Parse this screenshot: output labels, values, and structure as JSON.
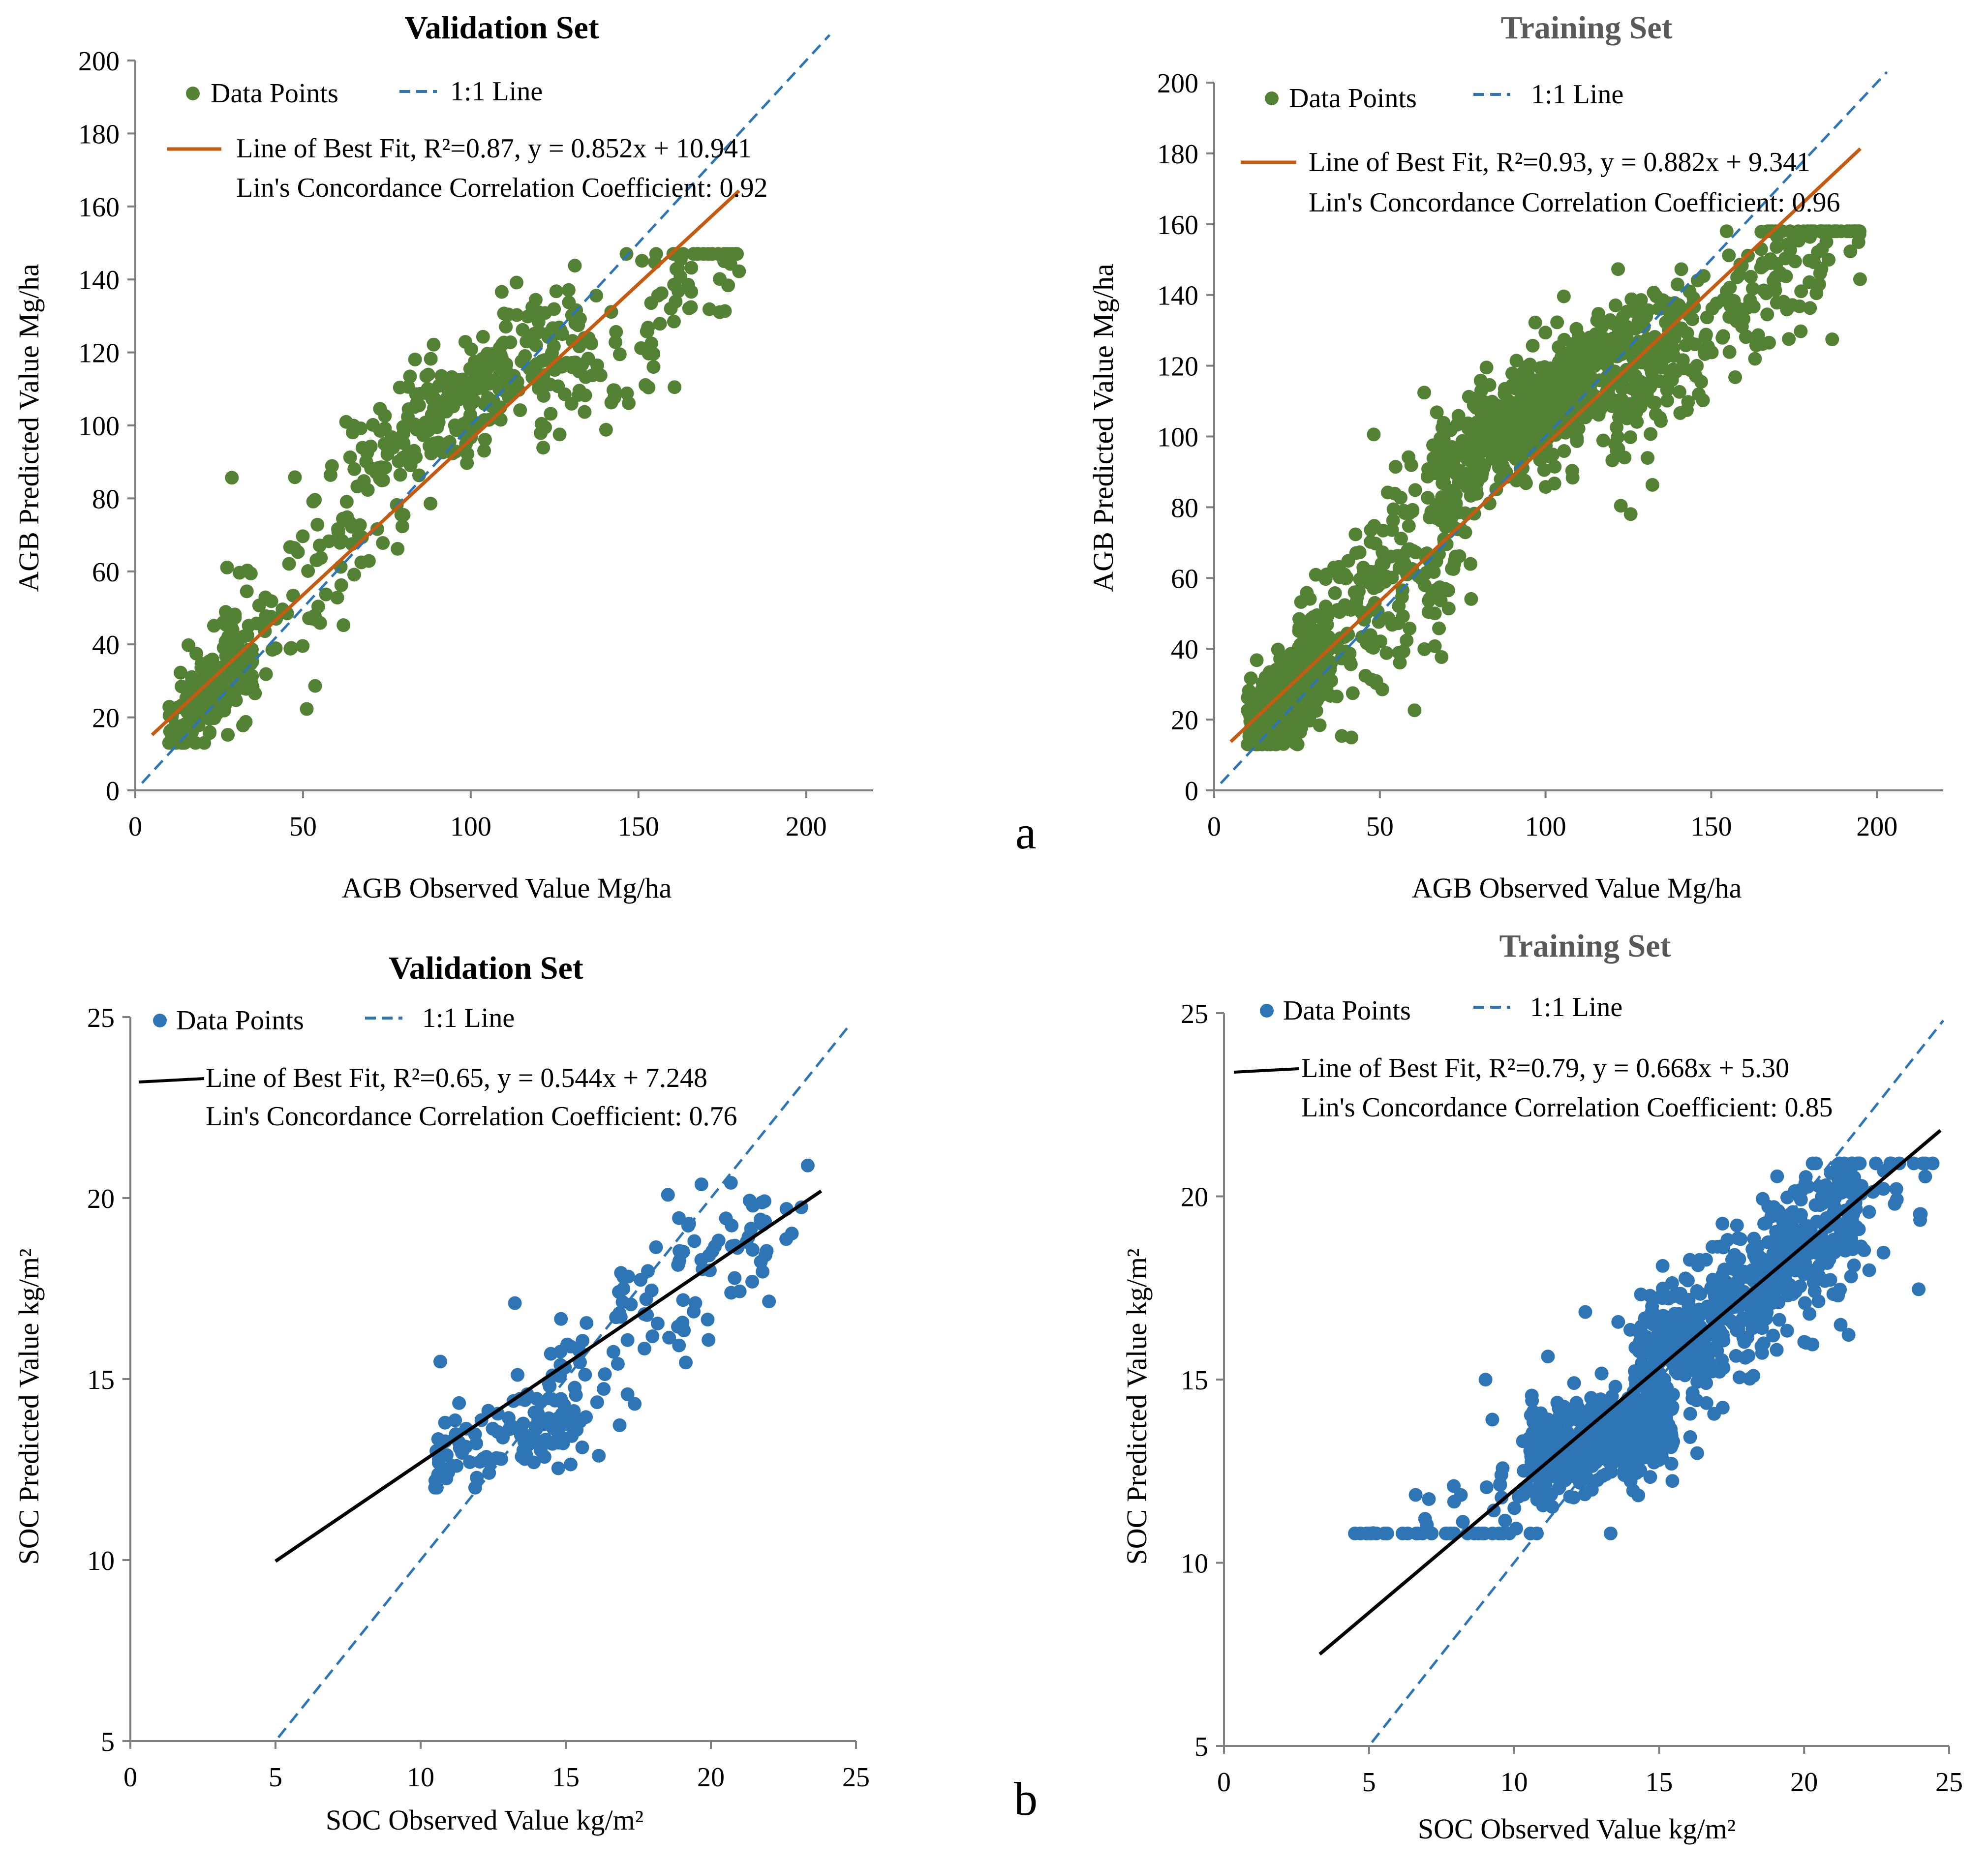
{
  "figure": {
    "panel_labels": [
      "a",
      "b"
    ]
  },
  "colors": {
    "agb_points": "#548235",
    "agb_fit": "#C55A11",
    "soc_points": "#2E75B6",
    "soc_fit": "#000000",
    "one_to_one": "#2E75B6",
    "axis": "#7f7f7f",
    "title_dark": "#000000",
    "title_gray": "#595959"
  },
  "chart_data": [
    {
      "id": "agb-validation",
      "type": "scatter",
      "title": "Validation Set",
      "xlabel": "AGB Observed Value Mg/ha",
      "ylabel": "AGB  Predicted Value  Mg/ha",
      "xlim": [
        0,
        220
      ],
      "ylim": [
        0,
        200
      ],
      "xticks": [
        0,
        50,
        100,
        150,
        200
      ],
      "yticks": [
        0,
        20,
        40,
        60,
        80,
        100,
        120,
        140,
        160,
        180,
        200
      ],
      "grid": false,
      "legend": {
        "points": "Data Points",
        "one_to_one": "1:1 Line",
        "fit": "Line of Best Fit, R²=0.87, y = 0.852x + 10.941",
        "ccc": "Lin's Concordance Correlation Coefficient: 0.92"
      },
      "fit": {
        "slope": 0.852,
        "intercept": 10.941,
        "x_range": [
          5,
          180
        ],
        "r2": 0.87
      },
      "one_to_one": {
        "x_range": [
          2,
          207
        ]
      },
      "n_points": 650,
      "point_seed": 11
    },
    {
      "id": "agb-training",
      "type": "scatter",
      "title": "Training Set",
      "xlabel": "AGB Observed Value Mg/ha",
      "ylabel": "AGB  Predicted Value  Mg/ha",
      "xlim": [
        0,
        220
      ],
      "ylim": [
        0,
        200
      ],
      "xticks": [
        0,
        50,
        100,
        150,
        200
      ],
      "yticks": [
        0,
        20,
        40,
        60,
        80,
        100,
        120,
        140,
        160,
        180,
        200
      ],
      "grid": false,
      "legend": {
        "points": "Data Points",
        "one_to_one": "1:1 Line",
        "fit": "Line of Best Fit, R²=0.93, y =  0.882x + 9.341",
        "ccc": "Lin's Concordance Correlation Coefficient: 0.96"
      },
      "fit": {
        "slope": 0.882,
        "intercept": 9.341,
        "x_range": [
          5,
          195
        ],
        "r2": 0.93
      },
      "one_to_one": {
        "x_range": [
          2,
          203
        ]
      },
      "n_points": 1500,
      "point_seed": 23
    },
    {
      "id": "soc-validation",
      "type": "scatter",
      "title": "Validation Set",
      "xlabel": "SOC Observed Value kg/m²",
      "ylabel": "SOC  Predicted Value  kg/m²",
      "xlim": [
        0,
        25
      ],
      "ylim": [
        5,
        25
      ],
      "xticks": [
        0,
        5,
        10,
        15,
        20,
        25
      ],
      "yticks": [
        5,
        10,
        15,
        20,
        25
      ],
      "grid": false,
      "legend": {
        "points": "Data Points",
        "one_to_one": "1:1 Line",
        "fit": "Line of Best Fit,  R²=0.65, y = 0.544x + 7.248",
        "ccc": "Lin's Concordance Correlation Coefficient: 0.76"
      },
      "fit": {
        "slope": 0.544,
        "intercept": 7.248,
        "x_range": [
          5,
          23.8
        ],
        "r2": 0.65
      },
      "one_to_one": {
        "x_range": [
          5.1,
          24.8
        ]
      },
      "n_points": 220,
      "point_seed": 37
    },
    {
      "id": "soc-training",
      "type": "scatter",
      "title": "Training Set",
      "xlabel": "SOC Observed Value kg/m²",
      "ylabel": "SOC  Predicted Value  kg/m²",
      "xlim": [
        0,
        25
      ],
      "ylim": [
        5,
        25
      ],
      "xticks": [
        0,
        5,
        10,
        15,
        20,
        25
      ],
      "yticks": [
        5,
        10,
        15,
        20,
        25
      ],
      "grid": false,
      "legend": {
        "points": "Data Points",
        "one_to_one": "1:1 Line",
        "fit": "Line of Best Fit,  R²=0.79, y = 0.668x + 5.30",
        "ccc": "Lin's Concordance Correlation Coefficient: 0.85"
      },
      "fit": {
        "slope": 0.668,
        "intercept": 5.3,
        "x_range": [
          3.3,
          24.7
        ],
        "r2": 0.79
      },
      "one_to_one": {
        "x_range": [
          5.1,
          24.8
        ]
      },
      "n_points": 1100,
      "point_seed": 53
    }
  ]
}
